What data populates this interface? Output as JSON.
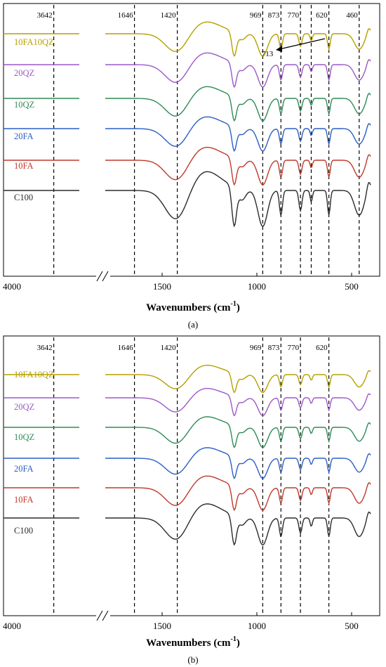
{
  "chart_data": [
    {
      "type": "line",
      "panel_label": "(a)",
      "xlabel": "Wavenumbers (cm",
      "xlabel_sup": "-1",
      "xlabel_end": ")",
      "x_reversed": true,
      "x_axis_break": [
        3500,
        1800
      ],
      "x_ticks": [
        "4000",
        "1500",
        "1000",
        "500"
      ],
      "peaks": [
        "3642",
        "1646",
        "1420",
        "969",
        "873",
        "770",
        "713",
        "620",
        "460"
      ],
      "annotation": "713",
      "series": [
        {
          "name": "10FA10QZ",
          "color": "#b5a000"
        },
        {
          "name": "20QZ",
          "color": "#9c59c8"
        },
        {
          "name": "10QZ",
          "color": "#2e8b57"
        },
        {
          "name": "20FA",
          "color": "#2a5fc4"
        },
        {
          "name": "10FA",
          "color": "#c0392b"
        },
        {
          "name": "C100",
          "color": "#2b2b2b"
        }
      ]
    },
    {
      "type": "line",
      "panel_label": "(b)",
      "xlabel": "Wavenumbers (cm",
      "xlabel_sup": "-1",
      "xlabel_end": ")",
      "x_reversed": true,
      "x_axis_break": [
        3500,
        1800
      ],
      "x_ticks": [
        "4000",
        "1500",
        "1000",
        "500"
      ],
      "peaks": [
        "3642",
        "1646",
        "1420",
        "969",
        "873",
        "770",
        "620"
      ],
      "series": [
        {
          "name": "10FA10QZ",
          "color": "#b5a000"
        },
        {
          "name": "20QZ",
          "color": "#9c59c8"
        },
        {
          "name": "10QZ",
          "color": "#2e8b57"
        },
        {
          "name": "20FA",
          "color": "#2a5fc4"
        },
        {
          "name": "10FA",
          "color": "#c0392b"
        },
        {
          "name": "C100",
          "color": "#2b2b2b"
        }
      ]
    }
  ]
}
